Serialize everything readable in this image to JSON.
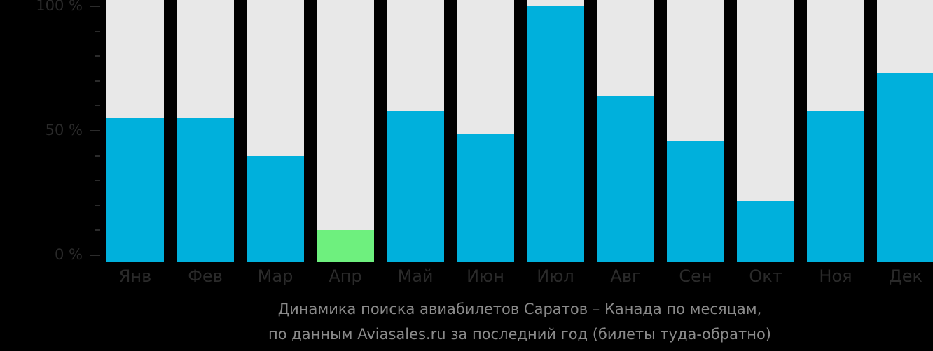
{
  "chart_data": {
    "type": "bar",
    "title": "Динамика поиска авиабилетов Саратов – Канада по месяцам,",
    "subtitle": "по данным Aviasales.ru за последний год (билеты туда-обратно)",
    "xlabel": "",
    "ylabel": "",
    "categories": [
      "Янв",
      "Фев",
      "Мар",
      "Апр",
      "Май",
      "Июн",
      "Июл",
      "Авг",
      "Сен",
      "Окт",
      "Ноя",
      "Дек"
    ],
    "values": [
      55,
      55,
      40,
      10,
      58,
      49,
      100,
      64,
      46,
      22,
      58,
      73
    ],
    "ylim": [
      0,
      100
    ],
    "yticks": [
      "0 %",
      "50 %",
      "100 %"
    ],
    "grid": false,
    "legend": null,
    "colors": {
      "bar": "#00b0dc",
      "min_bar": "#6ef07e",
      "background_bar": "#e8e8e8",
      "background": "#000000"
    }
  }
}
